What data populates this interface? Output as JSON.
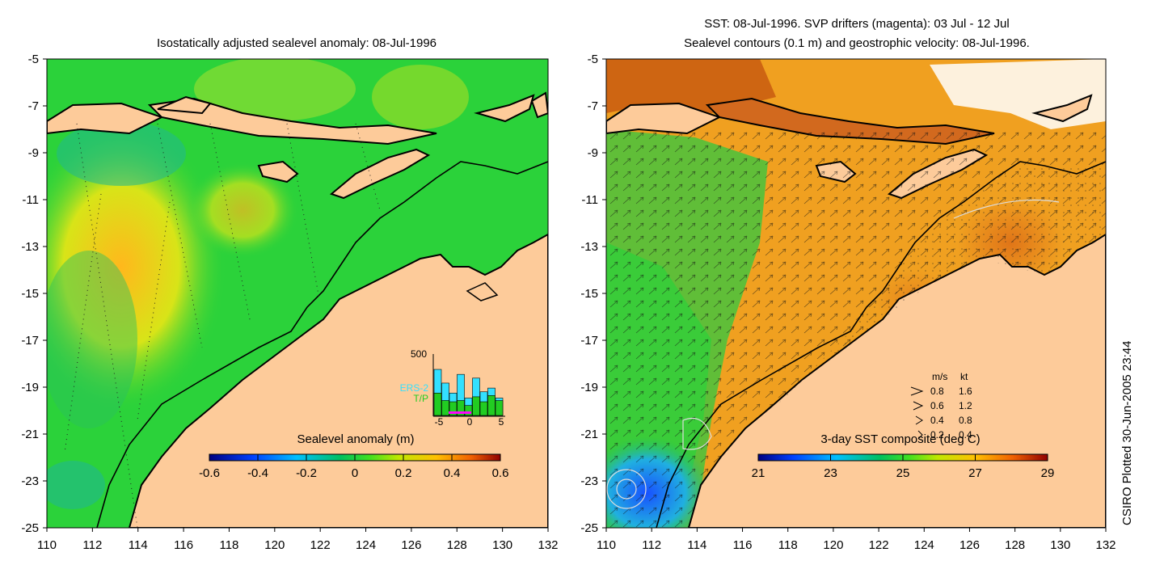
{
  "left_panel": {
    "title": "Isostatically adjusted sealevel anomaly: 08-Jul-1996",
    "x_ticks": [
      "110",
      "112",
      "114",
      "116",
      "118",
      "120",
      "122",
      "124",
      "126",
      "128",
      "130",
      "132"
    ],
    "y_ticks": [
      "-5",
      "-7",
      "-9",
      "-11",
      "-13",
      "-15",
      "-17",
      "-19",
      "-21",
      "-23",
      "-25"
    ],
    "colorbar": {
      "label": "Sealevel anomaly (m)",
      "ticks": [
        "-0.6",
        "-0.4",
        "-0.2",
        "0",
        "0.2",
        "0.4",
        "0.6"
      ]
    },
    "inset": {
      "y_label": "500",
      "x_ticks": [
        "-5",
        "0",
        "5"
      ],
      "legend": [
        {
          "name": "ERS-2",
          "color": "#33e0ff"
        },
        {
          "name": "T/P",
          "color": "#22cc22"
        }
      ]
    }
  },
  "right_panel": {
    "title_line1": "SST: 08-Jul-1996. SVP drifters (magenta): 03 Jul - 12 Jul",
    "title_line2": "Sealevel contours (0.1 m) and geostrophic velocity: 08-Jul-1996.",
    "x_ticks": [
      "110",
      "112",
      "114",
      "116",
      "118",
      "120",
      "122",
      "124",
      "126",
      "128",
      "130",
      "132"
    ],
    "y_ticks": [
      "-5",
      "-7",
      "-9",
      "-11",
      "-13",
      "-15",
      "-17",
      "-19",
      "-21",
      "-23",
      "-25"
    ],
    "colorbar": {
      "label": "3-day SST composite (deg C)",
      "ticks": [
        "21",
        "23",
        "25",
        "27",
        "29"
      ]
    },
    "velocity_key": {
      "header_ms": "m/s",
      "header_kt": "kt",
      "rows": [
        {
          "ms": "0.8",
          "kt": "1.6"
        },
        {
          "ms": "0.6",
          "kt": "1.2"
        },
        {
          "ms": "0.4",
          "kt": "0.8"
        },
        {
          "ms": "0.2",
          "kt": "0.4"
        }
      ]
    }
  },
  "credit": "CSIRO Plotted 30-Jun-2005 23:44",
  "colors": {
    "land": "#fdcb9a",
    "ocean_base": "#2bd23a",
    "sla_high": "#ffb81c",
    "sst_warm": "#f08a1e"
  },
  "chart_data": {
    "type": "map",
    "region": {
      "lon_range": [
        110,
        132
      ],
      "lat_range": [
        -25,
        -5
      ]
    },
    "left_scale_range": [
      -0.6,
      0.6
    ],
    "right_scale_range": [
      21,
      29
    ],
    "inset_histogram": {
      "ERS-2": [
        370,
        260,
        180,
        330,
        140,
        300,
        190,
        220,
        140
      ],
      "T/P": [
        180,
        120,
        110,
        120,
        80,
        150,
        110,
        160,
        120
      ]
    }
  }
}
